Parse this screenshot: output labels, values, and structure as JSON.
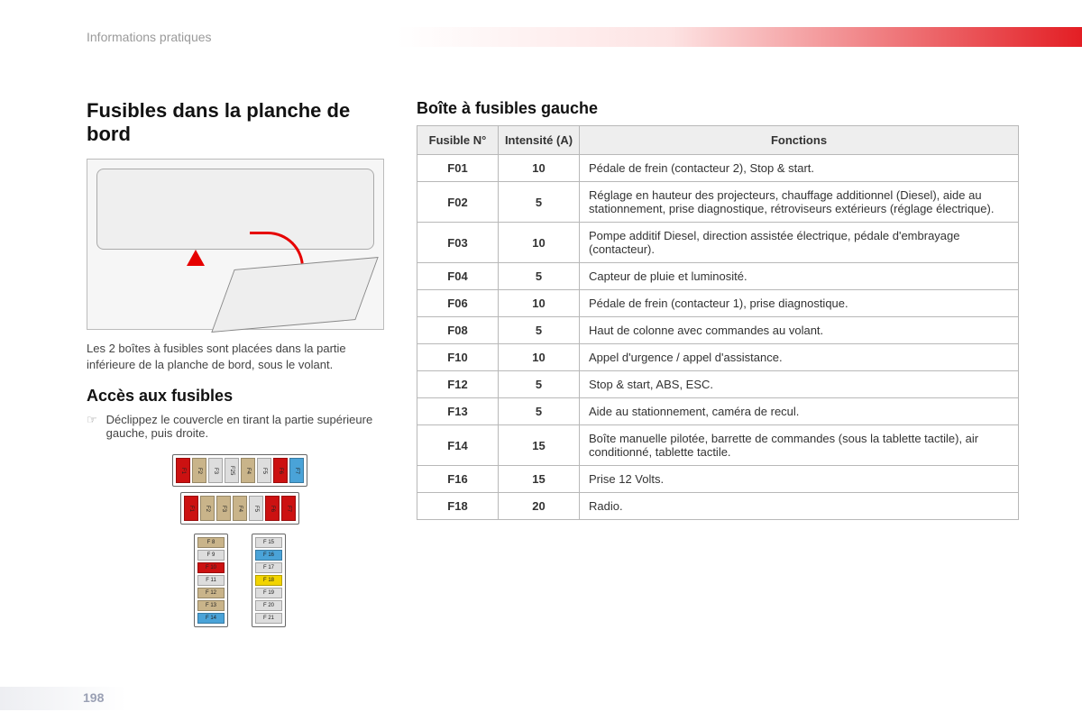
{
  "header": {
    "section_label": "Informations pratiques"
  },
  "page_number": "198",
  "left": {
    "main_title": "Fusibles dans la planche de bord",
    "caption": "Les 2 boîtes à fusibles sont placées dans la partie inférieure de la planche de bord, sous le volant.",
    "access_title": "Accès aux fusibles",
    "access_bullet_symbol": "☞",
    "access_bullet": "Déclippez le couvercle en tirant la partie supérieure gauche, puis droite.",
    "fusebox_rows": {
      "row1": [
        {
          "label": "F1",
          "color": "#c11"
        },
        {
          "label": "F2",
          "color": "#c9b48a"
        },
        {
          "label": "F3",
          "color": "#ddd"
        },
        {
          "label": "F25",
          "color": "#ddd"
        },
        {
          "label": "F4",
          "color": "#c9b48a"
        },
        {
          "label": "F5",
          "color": "#ddd"
        },
        {
          "label": "F6",
          "color": "#c11"
        },
        {
          "label": "F7",
          "color": "#4aa3d8"
        }
      ],
      "row2": [
        {
          "label": "F1",
          "color": "#c11"
        },
        {
          "label": "F2",
          "color": "#c9b48a"
        },
        {
          "label": "F3",
          "color": "#c9b48a"
        },
        {
          "label": "F4",
          "color": "#c9b48a"
        },
        {
          "label": "F5",
          "color": "#ddd"
        },
        {
          "label": "F6",
          "color": "#c11"
        },
        {
          "label": "F7",
          "color": "#c11"
        }
      ],
      "left_small": [
        {
          "label": "F 8",
          "color": "#c9b48a"
        },
        {
          "label": "F 9",
          "color": "#ddd"
        },
        {
          "label": "F 10",
          "color": "#c11"
        },
        {
          "label": "F 11",
          "color": "#ddd"
        },
        {
          "label": "F 12",
          "color": "#c9b48a"
        },
        {
          "label": "F 13",
          "color": "#c9b48a"
        },
        {
          "label": "F 14",
          "color": "#4aa3d8"
        }
      ],
      "right_small": [
        {
          "label": "F 15",
          "color": "#ddd"
        },
        {
          "label": "F 16",
          "color": "#4aa3d8"
        },
        {
          "label": "F 17",
          "color": "#ddd"
        },
        {
          "label": "F 18",
          "color": "#f2d400"
        },
        {
          "label": "F 19",
          "color": "#ddd"
        },
        {
          "label": "F 20",
          "color": "#ddd"
        },
        {
          "label": "F 21",
          "color": "#ddd"
        }
      ]
    }
  },
  "right": {
    "sub_title": "Boîte à fusibles gauche",
    "table": {
      "columns": [
        "Fusible N°",
        "Intensité (A)",
        "Fonctions"
      ],
      "rows": [
        {
          "n": "F01",
          "a": "10",
          "f": "Pédale de frein (contacteur 2), Stop & start."
        },
        {
          "n": "F02",
          "a": "5",
          "f": "Réglage en hauteur des projecteurs, chauffage additionnel (Diesel), aide au stationnement, prise diagnostique, rétroviseurs extérieurs (réglage électrique)."
        },
        {
          "n": "F03",
          "a": "10",
          "f": "Pompe additif Diesel, direction assistée électrique, pédale d'embrayage (contacteur)."
        },
        {
          "n": "F04",
          "a": "5",
          "f": "Capteur de pluie et luminosité."
        },
        {
          "n": "F06",
          "a": "10",
          "f": "Pédale de frein (contacteur 1), prise diagnostique."
        },
        {
          "n": "F08",
          "a": "5",
          "f": "Haut de colonne avec commandes au volant."
        },
        {
          "n": "F10",
          "a": "10",
          "f": "Appel d'urgence / appel d'assistance."
        },
        {
          "n": "F12",
          "a": "5",
          "f": "Stop & start, ABS, ESC."
        },
        {
          "n": "F13",
          "a": "5",
          "f": "Aide au stationnement, caméra de recul."
        },
        {
          "n": "F14",
          "a": "15",
          "f": "Boîte manuelle pilotée, barrette de commandes (sous la tablette tactile), air conditionné, tablette tactile."
        },
        {
          "n": "F16",
          "a": "15",
          "f": "Prise 12 Volts."
        },
        {
          "n": "F18",
          "a": "20",
          "f": "Radio."
        }
      ]
    }
  },
  "colors": {
    "accent_red": "#e31e24",
    "border_gray": "#b8b8b8",
    "header_bg": "#eeeeee",
    "text": "#333333"
  }
}
